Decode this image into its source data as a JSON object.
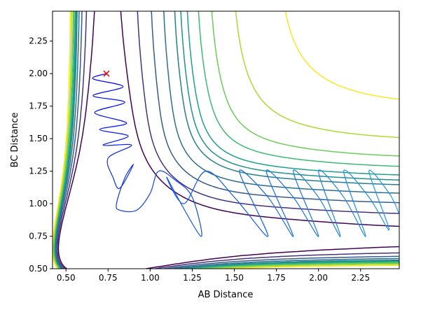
{
  "chart_data": {
    "type": "contour",
    "title": "",
    "xlabel": "AB Distance",
    "ylabel": "BC Distance",
    "xlim": [
      0.42,
      2.48
    ],
    "ylim": [
      0.5,
      2.48
    ],
    "x_ticks": [
      {
        "value": 0.5,
        "label": "0.50"
      },
      {
        "value": 0.75,
        "label": "0.75"
      },
      {
        "value": 1.0,
        "label": "1.00"
      },
      {
        "value": 1.25,
        "label": "1.25"
      },
      {
        "value": 1.5,
        "label": "1.50"
      },
      {
        "value": 1.75,
        "label": "1.75"
      },
      {
        "value": 2.0,
        "label": "2.00"
      },
      {
        "value": 2.25,
        "label": "2.25"
      }
    ],
    "y_ticks": [
      {
        "value": 0.5,
        "label": "0.50"
      },
      {
        "value": 0.75,
        "label": "0.75"
      },
      {
        "value": 1.0,
        "label": "1.00"
      },
      {
        "value": 1.25,
        "label": "1.25"
      },
      {
        "value": 1.5,
        "label": "1.50"
      },
      {
        "value": 1.75,
        "label": "1.75"
      },
      {
        "value": 2.0,
        "label": "2.00"
      },
      {
        "value": 2.25,
        "label": "2.25"
      }
    ],
    "colormap": [
      "#440154",
      "#3b528b",
      "#21918c",
      "#5ec962",
      "#fde725"
    ],
    "contour_levels": [
      {
        "value": 0.15,
        "color": "#440154"
      },
      {
        "value": 0.28,
        "color": "#46337f"
      },
      {
        "value": 0.4,
        "color": "#365c8d"
      },
      {
        "value": 0.5,
        "color": "#2e6e8e"
      },
      {
        "value": 0.58,
        "color": "#277f8e"
      },
      {
        "value": 0.62,
        "color": "#21918c"
      },
      {
        "value": 0.66,
        "color": "#1fa188"
      },
      {
        "value": 0.72,
        "color": "#3bbb75"
      },
      {
        "value": 0.78,
        "color": "#6ccd5a"
      },
      {
        "value": 0.86,
        "color": "#aadc32"
      },
      {
        "value": 0.95,
        "color": "#fde725"
      }
    ],
    "start_marker": {
      "x": 0.74,
      "y": 2.0,
      "symbol": "x",
      "color": "#ff0000"
    },
    "trajectory": {
      "color_start": "#0000ff",
      "color_end": "#1f9ef0",
      "points": [
        [
          0.74,
          2.0
        ],
        [
          0.66,
          1.96
        ],
        [
          0.84,
          1.9
        ],
        [
          0.66,
          1.83
        ],
        [
          0.85,
          1.78
        ],
        [
          0.67,
          1.7
        ],
        [
          0.86,
          1.62
        ],
        [
          0.7,
          1.57
        ],
        [
          0.87,
          1.52
        ],
        [
          0.72,
          1.45
        ],
        [
          0.89,
          1.45
        ],
        [
          0.75,
          1.35
        ],
        [
          0.78,
          1.2
        ],
        [
          0.82,
          1.12
        ],
        [
          0.9,
          1.3
        ],
        [
          0.85,
          1.2
        ],
        [
          0.8,
          1.0
        ],
        [
          0.82,
          0.95
        ],
        [
          0.92,
          0.95
        ],
        [
          1.0,
          1.08
        ],
        [
          1.05,
          1.25
        ],
        [
          1.15,
          1.18
        ],
        [
          1.25,
          1.05
        ],
        [
          1.3,
          0.75
        ],
        [
          1.1,
          1.2
        ],
        [
          1.2,
          1.0
        ],
        [
          1.33,
          1.25
        ],
        [
          1.5,
          1.05
        ],
        [
          1.7,
          0.75
        ],
        [
          1.53,
          1.25
        ],
        [
          1.7,
          1.05
        ],
        [
          1.85,
          0.75
        ],
        [
          1.69,
          1.25
        ],
        [
          1.85,
          1.05
        ],
        [
          2.0,
          0.75
        ],
        [
          1.85,
          1.25
        ],
        [
          2.0,
          1.05
        ],
        [
          2.13,
          0.75
        ],
        [
          2.0,
          1.25
        ],
        [
          2.15,
          1.05
        ],
        [
          2.28,
          0.75
        ],
        [
          2.15,
          1.25
        ],
        [
          2.3,
          1.05
        ],
        [
          2.42,
          0.8
        ],
        [
          2.3,
          1.25
        ],
        [
          2.42,
          1.08
        ],
        [
          2.48,
          0.92
        ]
      ]
    }
  }
}
